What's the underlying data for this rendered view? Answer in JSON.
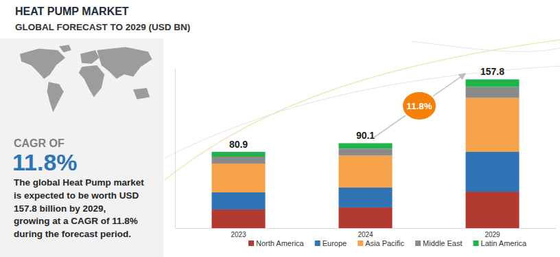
{
  "chart_data": {
    "type": "bar",
    "stacked": true,
    "title": "HEAT PUMP MARKET",
    "subtitle": "GLOBAL FORECAST TO 2029 (USD BN)",
    "categories": [
      "2023",
      "2024",
      "2029"
    ],
    "series": [
      {
        "name": "North America",
        "color": "#b23a2f",
        "values": [
          19.7,
          21.9,
          38.6
        ]
      },
      {
        "name": "Europe",
        "color": "#2f74b5",
        "values": [
          18.2,
          21.1,
          42.3
        ]
      },
      {
        "name": "Asia Pacific",
        "color": "#f5a24b",
        "values": [
          30.6,
          34.0,
          57.2
        ]
      },
      {
        "name": "Middle East",
        "color": "#8a8a8a",
        "values": [
          7.3,
          7.3,
          11.7
        ]
      },
      {
        "name": "Latin America",
        "color": "#22b24c",
        "values": [
          5.1,
          5.8,
          8.0
        ]
      }
    ],
    "totals": [
      80.9,
      90.1,
      157.8
    ],
    "annotation": "11.8%",
    "ylim": [
      0,
      170
    ],
    "yticks": [],
    "tick_labels": "x",
    "grid": false,
    "legend": "bottom"
  },
  "sidebar": {
    "heading": "CAGR OF",
    "value": "11.8%",
    "text_lines": [
      "The global Heat Pump market",
      "is expected to be worth USD",
      "157.8 billion by 2029,",
      "growing at a CAGR of 11.8%",
      "during the forecast period."
    ]
  }
}
